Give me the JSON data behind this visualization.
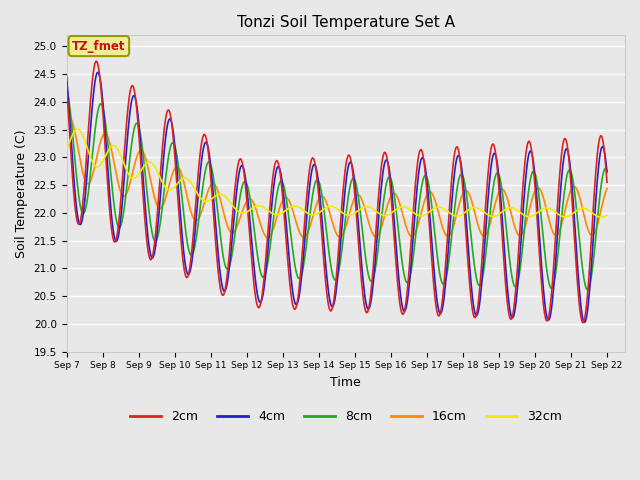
{
  "title": "Tonzi Soil Temperature Set A",
  "xlabel": "Time",
  "ylabel": "Soil Temperature (C)",
  "ylim": [
    19.5,
    25.2
  ],
  "bg_color": "#e8e8e8",
  "grid_color": "#ffffff",
  "series": {
    "2cm": {
      "color": "#dd2222",
      "label": "2cm"
    },
    "4cm": {
      "color": "#2222cc",
      "label": "4cm"
    },
    "8cm": {
      "color": "#22aa22",
      "label": "8cm"
    },
    "16cm": {
      "color": "#ff8800",
      "label": "16cm"
    },
    "32cm": {
      "color": "#eeee00",
      "label": "32cm"
    }
  },
  "annotation_text": "TZ_fmet",
  "annotation_color": "#cc1111",
  "annotation_bg": "#eeee99",
  "annotation_border": "#999900",
  "figsize": [
    6.4,
    4.8
  ],
  "dpi": 100
}
